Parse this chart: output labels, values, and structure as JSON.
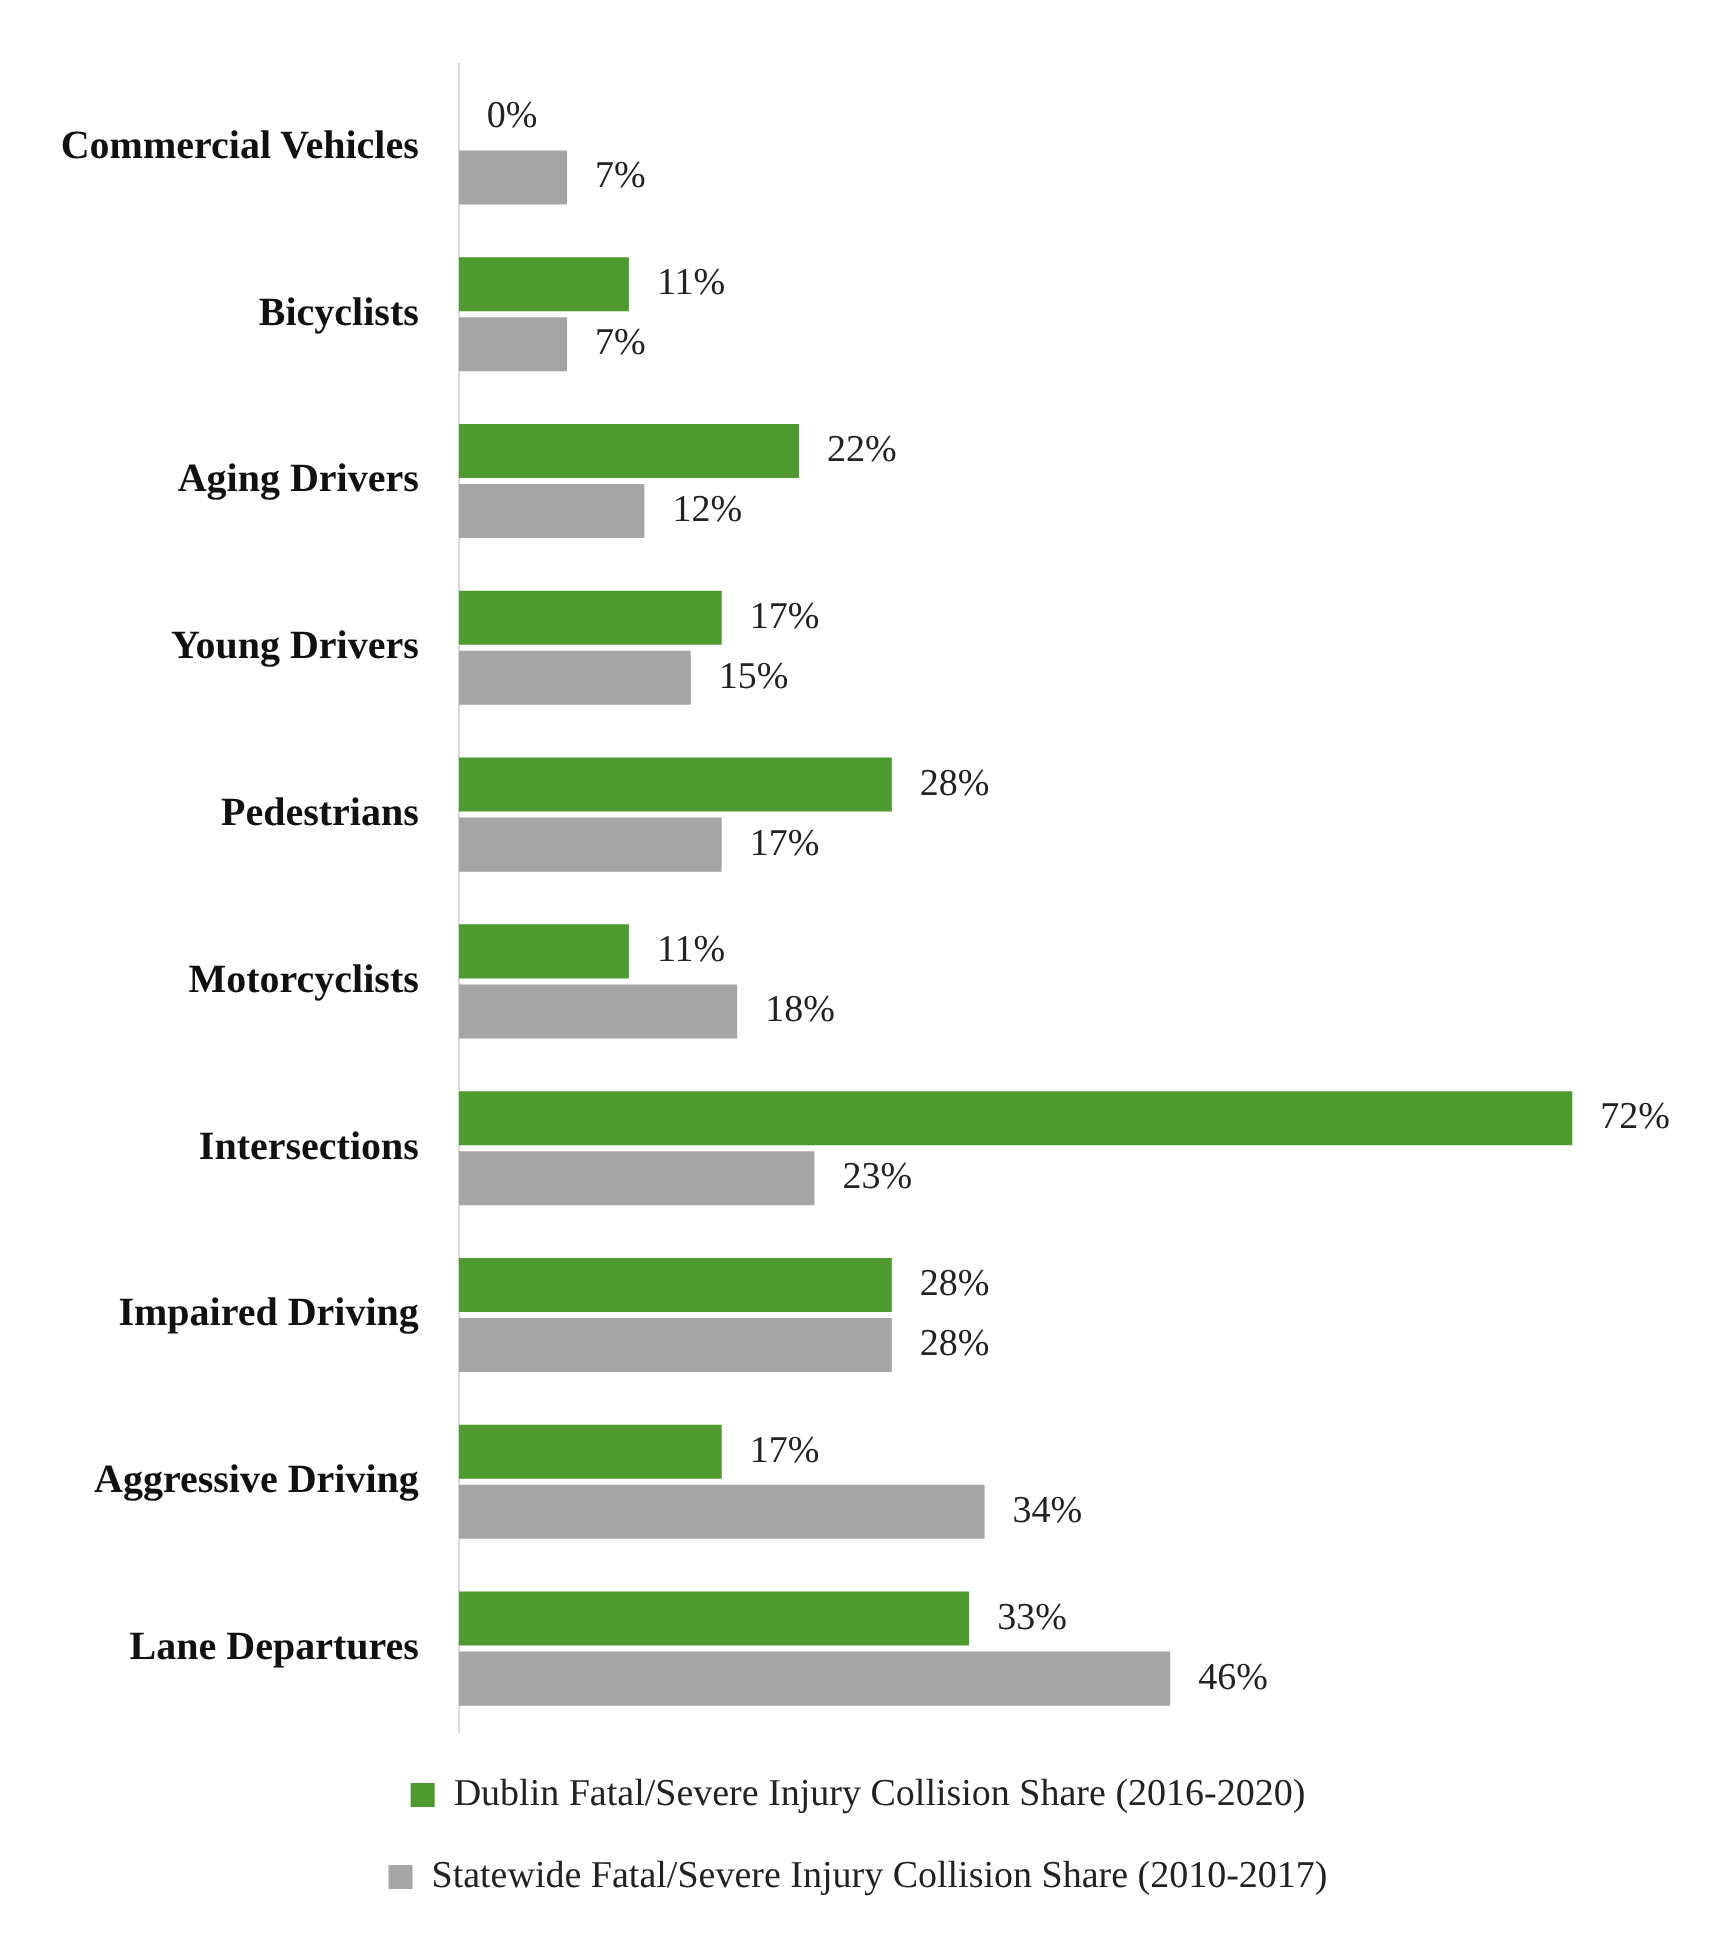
{
  "chart_data": {
    "type": "bar",
    "orientation": "horizontal",
    "categories": [
      "Commercial Vehicles",
      "Bicyclists",
      "Aging Drivers",
      "Young Drivers",
      "Pedestrians",
      "Motorcyclists",
      "Intersections",
      "Impaired Driving",
      "Aggressive Driving",
      "Lane Departures"
    ],
    "series": [
      {
        "name": "Dublin Fatal/Severe Injury Collision Share (2016-2020)",
        "color": "#4e9a2f",
        "values": [
          0,
          11,
          22,
          17,
          28,
          11,
          72,
          28,
          17,
          33
        ],
        "value_labels": [
          "0%",
          "11%",
          "22%",
          "17%",
          "28%",
          "11%",
          "72%",
          "28%",
          "17%",
          "33%"
        ]
      },
      {
        "name": "Statewide Fatal/Severe Injury Collision Share (2010-2017)",
        "color": "#a5a5a5",
        "values": [
          7,
          7,
          12,
          15,
          17,
          18,
          23,
          28,
          34,
          46
        ],
        "value_labels": [
          "7%",
          "7%",
          "12%",
          "15%",
          "17%",
          "18%",
          "23%",
          "28%",
          "34%",
          "46%"
        ]
      }
    ],
    "grid": false,
    "legend": "bottom",
    "tick_labels": "y"
  }
}
